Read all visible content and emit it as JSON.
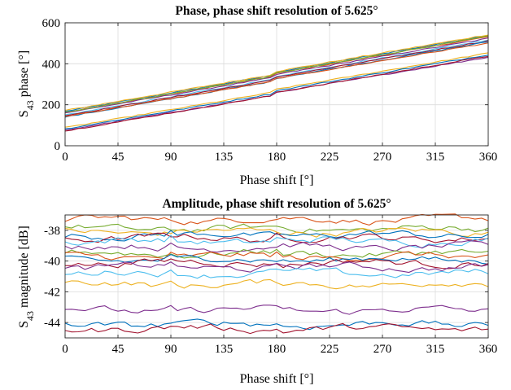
{
  "chart_data": [
    {
      "type": "line",
      "title": "Phase, phase shift resolution of 5.625°",
      "xlabel": "Phase shift [°]",
      "ylabel_main": "S",
      "ylabel_sub": "43",
      "ylabel_rest": " phase [°]",
      "xlim": [
        0,
        360
      ],
      "ylim": [
        0,
        600
      ],
      "xticks": [
        0,
        45,
        90,
        135,
        180,
        225,
        270,
        315,
        360
      ],
      "yticks": [
        0,
        200,
        400,
        600
      ],
      "grid": true,
      "legend": "none",
      "x_step": 5.625,
      "series": [
        {
          "color": "#0072BD",
          "start": 168,
          "end": 527
        },
        {
          "color": "#D95319",
          "start": 163,
          "end": 520
        },
        {
          "color": "#EDB120",
          "start": 172,
          "end": 530
        },
        {
          "color": "#7E2F8E",
          "start": 160,
          "end": 512
        },
        {
          "color": "#77AC30",
          "start": 164,
          "end": 522
        },
        {
          "color": "#4DBEEE",
          "start": 150,
          "end": 505
        },
        {
          "color": "#A2142F",
          "start": 147,
          "end": 500
        },
        {
          "color": "#0072BD",
          "start": 140,
          "end": 495
        },
        {
          "color": "#D95319",
          "start": 143,
          "end": 490
        },
        {
          "color": "#EDB120",
          "start": 88,
          "end": 440
        },
        {
          "color": "#7E2F8E",
          "start": 76,
          "end": 420
        },
        {
          "color": "#0072BD",
          "start": 82,
          "end": 432
        },
        {
          "color": "#A2142F",
          "start": 72,
          "end": 425
        }
      ]
    },
    {
      "type": "line",
      "title": "Amplitude, phase shift resolution of 5.625°",
      "xlabel": "Phase shift [°]",
      "ylabel_main": "S",
      "ylabel_sub": "43",
      "ylabel_rest": " magnitude [dB]",
      "xlim": [
        0,
        360
      ],
      "ylim": [
        -45,
        -37
      ],
      "xticks": [
        0,
        45,
        90,
        135,
        180,
        225,
        270,
        315,
        360
      ],
      "yticks": [
        -44,
        -42,
        -40,
        -38
      ],
      "ytick_labels": [
        "-44",
        "-42",
        "-40",
        "-38"
      ],
      "grid": true,
      "legend": "none",
      "x_step": 5.625,
      "series": [
        {
          "color": "#D95319",
          "level": -37.3
        },
        {
          "color": "#77AC30",
          "level": -37.9
        },
        {
          "color": "#EDB120",
          "level": -38.1
        },
        {
          "color": "#0072BD",
          "level": -38.3
        },
        {
          "color": "#A2142F",
          "level": -38.5
        },
        {
          "color": "#4DBEEE",
          "level": -38.7
        },
        {
          "color": "#7E2F8E",
          "level": -39.1
        },
        {
          "color": "#77AC30",
          "level": -39.5
        },
        {
          "color": "#D95319",
          "level": -39.7
        },
        {
          "color": "#0072BD",
          "level": -39.9
        },
        {
          "color": "#A2142F",
          "level": -40.1
        },
        {
          "color": "#7E2F8E",
          "level": -40.4
        },
        {
          "color": "#4DBEEE",
          "level": -40.8
        },
        {
          "color": "#EDB120",
          "level": -41.5
        },
        {
          "color": "#7E2F8E",
          "level": -43.2
        },
        {
          "color": "#0072BD",
          "level": -44.1
        },
        {
          "color": "#A2142F",
          "level": -44.4
        }
      ]
    }
  ]
}
